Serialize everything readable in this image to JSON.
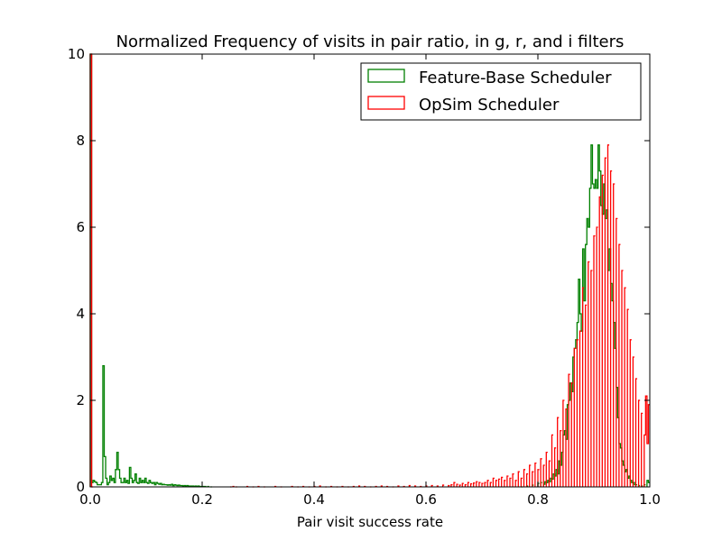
{
  "chart_data": {
    "type": "histogram",
    "title": "Normalized Frequency of visits in pair ratio, in g, r, and i filters",
    "xlabel": "Pair visit success rate",
    "ylabel": "",
    "xlim": [
      0.0,
      1.0
    ],
    "ylim": [
      0,
      10
    ],
    "xticks": [
      "0.0",
      "0.2",
      "0.4",
      "0.6",
      "0.8",
      "1.0"
    ],
    "yticks": [
      "0",
      "2",
      "4",
      "6",
      "8",
      "10"
    ],
    "grid": false,
    "legend_position": "top-right",
    "bins": 400,
    "series": [
      {
        "name": "Feature-Base Scheduler",
        "color": "#008000",
        "points": [
          [
            0.0,
            10.0
          ],
          [
            0.0025,
            0.1
          ],
          [
            0.005,
            0.15
          ],
          [
            0.0075,
            0.12
          ],
          [
            0.01,
            0.1
          ],
          [
            0.0125,
            0.05
          ],
          [
            0.015,
            0.05
          ],
          [
            0.0175,
            0.05
          ],
          [
            0.02,
            0.1
          ],
          [
            0.0225,
            2.8
          ],
          [
            0.025,
            0.7
          ],
          [
            0.0275,
            0.2
          ],
          [
            0.03,
            0.05
          ],
          [
            0.0325,
            0.1
          ],
          [
            0.035,
            0.25
          ],
          [
            0.0375,
            0.15
          ],
          [
            0.04,
            0.2
          ],
          [
            0.0425,
            0.1
          ],
          [
            0.045,
            0.4
          ],
          [
            0.0475,
            0.8
          ],
          [
            0.05,
            0.4
          ],
          [
            0.0525,
            0.2
          ],
          [
            0.055,
            0.1
          ],
          [
            0.0575,
            0.1
          ],
          [
            0.06,
            0.2
          ],
          [
            0.0625,
            0.1
          ],
          [
            0.065,
            0.15
          ],
          [
            0.0675,
            0.08
          ],
          [
            0.07,
            0.45
          ],
          [
            0.0725,
            0.2
          ],
          [
            0.075,
            0.1
          ],
          [
            0.0775,
            0.15
          ],
          [
            0.08,
            0.3
          ],
          [
            0.0825,
            0.1
          ],
          [
            0.085,
            0.08
          ],
          [
            0.0875,
            0.2
          ],
          [
            0.09,
            0.1
          ],
          [
            0.0925,
            0.15
          ],
          [
            0.095,
            0.1
          ],
          [
            0.0975,
            0.2
          ],
          [
            0.1,
            0.1
          ],
          [
            0.1025,
            0.08
          ],
          [
            0.105,
            0.15
          ],
          [
            0.1075,
            0.1
          ],
          [
            0.11,
            0.08
          ],
          [
            0.1125,
            0.1
          ],
          [
            0.115,
            0.05
          ],
          [
            0.1175,
            0.1
          ],
          [
            0.12,
            0.08
          ],
          [
            0.1225,
            0.06
          ],
          [
            0.125,
            0.08
          ],
          [
            0.1275,
            0.05
          ],
          [
            0.13,
            0.06
          ],
          [
            0.1325,
            0.05
          ],
          [
            0.135,
            0.05
          ],
          [
            0.1375,
            0.04
          ],
          [
            0.14,
            0.05
          ],
          [
            0.1425,
            0.04
          ],
          [
            0.145,
            0.06
          ],
          [
            0.1475,
            0.03
          ],
          [
            0.15,
            0.05
          ],
          [
            0.1525,
            0.04
          ],
          [
            0.155,
            0.03
          ],
          [
            0.1575,
            0.04
          ],
          [
            0.16,
            0.03
          ],
          [
            0.1625,
            0.03
          ],
          [
            0.165,
            0.02
          ],
          [
            0.1675,
            0.03
          ],
          [
            0.17,
            0.02
          ],
          [
            0.1725,
            0.03
          ],
          [
            0.175,
            0.02
          ],
          [
            0.1775,
            0.02
          ],
          [
            0.18,
            0.02
          ],
          [
            0.1825,
            0.02
          ],
          [
            0.185,
            0.01
          ],
          [
            0.1875,
            0.02
          ],
          [
            0.19,
            0.01
          ],
          [
            0.1925,
            0.02
          ],
          [
            0.195,
            0.01
          ],
          [
            0.1975,
            0.01
          ],
          [
            0.2,
            0.01
          ],
          [
            0.2025,
            0.01
          ],
          [
            0.205,
            0.01
          ],
          [
            0.21,
            0.01
          ],
          [
            0.215,
            0.0
          ],
          [
            0.77,
            0.0
          ],
          [
            0.78,
            0.02
          ],
          [
            0.79,
            0.04
          ],
          [
            0.8,
            0.08
          ],
          [
            0.805,
            0.1
          ],
          [
            0.81,
            0.06
          ],
          [
            0.8125,
            0.12
          ],
          [
            0.815,
            0.1
          ],
          [
            0.8175,
            0.15
          ],
          [
            0.82,
            0.12
          ],
          [
            0.8225,
            0.2
          ],
          [
            0.825,
            0.18
          ],
          [
            0.8275,
            0.3
          ],
          [
            0.83,
            0.25
          ],
          [
            0.8325,
            0.4
          ],
          [
            0.835,
            0.3
          ],
          [
            0.8375,
            0.6
          ],
          [
            0.84,
            0.5
          ],
          [
            0.8425,
            0.8
          ],
          [
            0.845,
            1.2
          ],
          [
            0.8475,
            1.3
          ],
          [
            0.85,
            1.1
          ],
          [
            0.8525,
            1.9
          ],
          [
            0.855,
            2.0
          ],
          [
            0.8575,
            2.4
          ],
          [
            0.86,
            2.2
          ],
          [
            0.8625,
            3.0
          ],
          [
            0.865,
            3.2
          ],
          [
            0.8675,
            3.4
          ],
          [
            0.87,
            3.8
          ],
          [
            0.8725,
            4.8
          ],
          [
            0.875,
            4.0
          ],
          [
            0.8775,
            3.6
          ],
          [
            0.88,
            5.5
          ],
          [
            0.8825,
            4.3
          ],
          [
            0.885,
            5.6
          ],
          [
            0.8875,
            6.2
          ],
          [
            0.89,
            6.0
          ],
          [
            0.8925,
            6.9
          ],
          [
            0.895,
            7.9
          ],
          [
            0.8975,
            7.0
          ],
          [
            0.9,
            6.9
          ],
          [
            0.9025,
            7.1
          ],
          [
            0.905,
            6.9
          ],
          [
            0.9075,
            7.9
          ],
          [
            0.91,
            7.3
          ],
          [
            0.9125,
            6.5
          ],
          [
            0.915,
            6.3
          ],
          [
            0.9175,
            7.0
          ],
          [
            0.92,
            6.2
          ],
          [
            0.9225,
            6.4
          ],
          [
            0.925,
            5.0
          ],
          [
            0.9275,
            5.5
          ],
          [
            0.93,
            4.7
          ],
          [
            0.9325,
            4.3
          ],
          [
            0.935,
            3.8
          ],
          [
            0.9375,
            3.2
          ],
          [
            0.94,
            2.3
          ],
          [
            0.9425,
            1.6
          ],
          [
            0.945,
            1.0
          ],
          [
            0.9475,
            0.9
          ],
          [
            0.95,
            0.6
          ],
          [
            0.9525,
            0.5
          ],
          [
            0.955,
            0.35
          ],
          [
            0.9575,
            0.4
          ],
          [
            0.96,
            0.2
          ],
          [
            0.9625,
            0.25
          ],
          [
            0.965,
            0.15
          ],
          [
            0.9675,
            0.1
          ],
          [
            0.97,
            0.1
          ],
          [
            0.9725,
            0.05
          ],
          [
            0.975,
            0.05
          ],
          [
            0.98,
            0.03
          ],
          [
            0.985,
            0.02
          ],
          [
            0.99,
            0.05
          ],
          [
            0.995,
            0.15
          ],
          [
            0.9975,
            0.1
          ]
        ]
      },
      {
        "name": "OpSim Scheduler",
        "color": "#ff0000",
        "points": [
          [
            0.0,
            10.0
          ],
          [
            0.0025,
            0.0
          ],
          [
            0.25,
            0.0
          ],
          [
            0.255,
            0.01
          ],
          [
            0.26,
            0.0
          ],
          [
            0.28,
            0.01
          ],
          [
            0.29,
            0.0
          ],
          [
            0.3,
            0.01
          ],
          [
            0.31,
            0.0
          ],
          [
            0.33,
            0.01
          ],
          [
            0.34,
            0.0
          ],
          [
            0.36,
            0.01
          ],
          [
            0.37,
            0.0
          ],
          [
            0.38,
            0.01
          ],
          [
            0.39,
            0.0
          ],
          [
            0.4,
            0.01
          ],
          [
            0.41,
            0.02
          ],
          [
            0.42,
            0.0
          ],
          [
            0.43,
            0.01
          ],
          [
            0.44,
            0.0
          ],
          [
            0.45,
            0.01
          ],
          [
            0.46,
            0.0
          ],
          [
            0.47,
            0.01
          ],
          [
            0.48,
            0.02
          ],
          [
            0.49,
            0.01
          ],
          [
            0.5,
            0.0
          ],
          [
            0.51,
            0.01
          ],
          [
            0.52,
            0.02
          ],
          [
            0.53,
            0.01
          ],
          [
            0.54,
            0.0
          ],
          [
            0.55,
            0.02
          ],
          [
            0.56,
            0.01
          ],
          [
            0.57,
            0.03
          ],
          [
            0.58,
            0.02
          ],
          [
            0.59,
            0.01
          ],
          [
            0.6,
            0.02
          ],
          [
            0.61,
            0.03
          ],
          [
            0.62,
            0.02
          ],
          [
            0.63,
            0.04
          ],
          [
            0.64,
            0.03
          ],
          [
            0.645,
            0.05
          ],
          [
            0.65,
            0.1
          ],
          [
            0.655,
            0.06
          ],
          [
            0.66,
            0.04
          ],
          [
            0.665,
            0.08
          ],
          [
            0.67,
            0.05
          ],
          [
            0.675,
            0.1
          ],
          [
            0.68,
            0.07
          ],
          [
            0.685,
            0.09
          ],
          [
            0.69,
            0.12
          ],
          [
            0.695,
            0.1
          ],
          [
            0.7,
            0.08
          ],
          [
            0.705,
            0.1
          ],
          [
            0.71,
            0.15
          ],
          [
            0.715,
            0.1
          ],
          [
            0.72,
            0.2
          ],
          [
            0.725,
            0.15
          ],
          [
            0.73,
            0.18
          ],
          [
            0.735,
            0.22
          ],
          [
            0.74,
            0.15
          ],
          [
            0.745,
            0.25
          ],
          [
            0.75,
            0.2
          ],
          [
            0.755,
            0.3
          ],
          [
            0.76,
            0.15
          ],
          [
            0.765,
            0.35
          ],
          [
            0.77,
            0.2
          ],
          [
            0.775,
            0.4
          ],
          [
            0.78,
            0.3
          ],
          [
            0.785,
            0.5
          ],
          [
            0.79,
            0.35
          ],
          [
            0.795,
            0.55
          ],
          [
            0.8,
            0.4
          ],
          [
            0.805,
            0.65
          ],
          [
            0.81,
            0.5
          ],
          [
            0.815,
            0.8
          ],
          [
            0.82,
            0.6
          ],
          [
            0.825,
            1.2
          ],
          [
            0.83,
            0.9
          ],
          [
            0.835,
            1.6
          ],
          [
            0.84,
            1.3
          ],
          [
            0.845,
            2.0
          ],
          [
            0.85,
            1.8
          ],
          [
            0.855,
            2.6
          ],
          [
            0.86,
            2.4
          ],
          [
            0.865,
            3.2
          ],
          [
            0.87,
            3.4
          ],
          [
            0.875,
            3.6
          ],
          [
            0.88,
            4.6
          ],
          [
            0.885,
            4.2
          ],
          [
            0.89,
            5.2
          ],
          [
            0.895,
            5.0
          ],
          [
            0.9,
            5.8
          ],
          [
            0.905,
            6.0
          ],
          [
            0.91,
            6.7
          ],
          [
            0.915,
            7.2
          ],
          [
            0.92,
            7.6
          ],
          [
            0.925,
            7.9
          ],
          [
            0.93,
            7.3
          ],
          [
            0.935,
            7.0
          ],
          [
            0.94,
            6.2
          ],
          [
            0.945,
            5.6
          ],
          [
            0.95,
            5.0
          ],
          [
            0.955,
            4.6
          ],
          [
            0.96,
            4.1
          ],
          [
            0.965,
            3.4
          ],
          [
            0.97,
            3.0
          ],
          [
            0.975,
            2.5
          ],
          [
            0.98,
            2.0
          ],
          [
            0.985,
            1.7
          ],
          [
            0.99,
            1.2
          ],
          [
            0.9925,
            2.1
          ],
          [
            0.995,
            1.0
          ],
          [
            0.9975,
            1.9
          ]
        ]
      }
    ]
  }
}
